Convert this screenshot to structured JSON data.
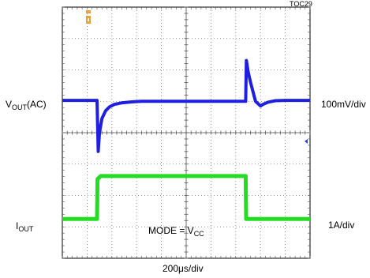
{
  "figure_id": "TOC29",
  "chart_data": {
    "type": "line",
    "time_per_div": "200μs/div",
    "divisions": {
      "x": 10,
      "y": 8
    },
    "annotation": {
      "prefix": "MODE = V",
      "sub": "CC"
    },
    "series": [
      {
        "name_main": "V",
        "name_sub": "OUT",
        "name_suffix": "(AC)",
        "scale": "100mV/div",
        "color": "#1f1fe0",
        "x_div": [
          0,
          1.4,
          1.45,
          1.5,
          1.6,
          1.75,
          1.9,
          2.1,
          2.4,
          2.8,
          3.2,
          4.0,
          5.0,
          6.0,
          7.4,
          7.43,
          7.5,
          7.6,
          7.8,
          8.0,
          8.1,
          8.3,
          8.6,
          9.0,
          10
        ],
        "y_div": [
          5.03,
          5.03,
          3.4,
          4.0,
          4.45,
          4.7,
          4.82,
          4.9,
          4.95,
          4.98,
          5.0,
          5.0,
          5.0,
          5.0,
          5.0,
          6.3,
          5.95,
          5.6,
          5.0,
          4.85,
          4.9,
          4.97,
          5.02,
          5.03,
          5.03
        ]
      },
      {
        "name_main": "I",
        "name_sub": "OUT",
        "name_suffix": "",
        "scale": "1A/div",
        "color": "#22dd22",
        "x_div": [
          0,
          1.4,
          1.42,
          1.55,
          7.4,
          7.42,
          10
        ],
        "y_div": [
          1.25,
          1.25,
          2.52,
          2.62,
          2.62,
          1.25,
          1.25
        ]
      }
    ]
  }
}
